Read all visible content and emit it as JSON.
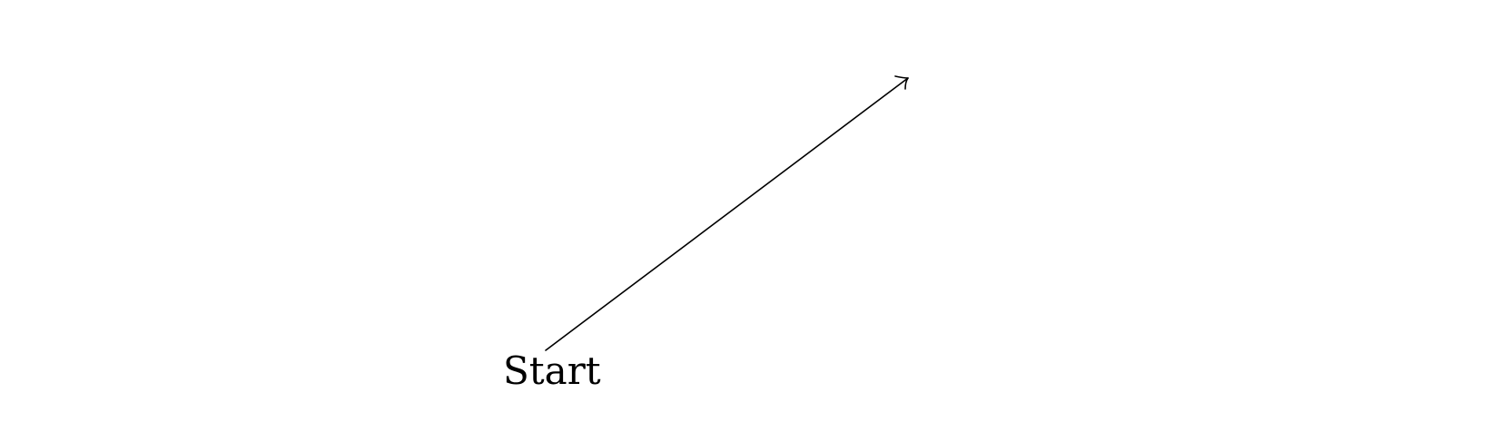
{
  "diagram": {
    "start_label": "Start",
    "line_color": "#000000",
    "background_color": "#ffffff"
  }
}
